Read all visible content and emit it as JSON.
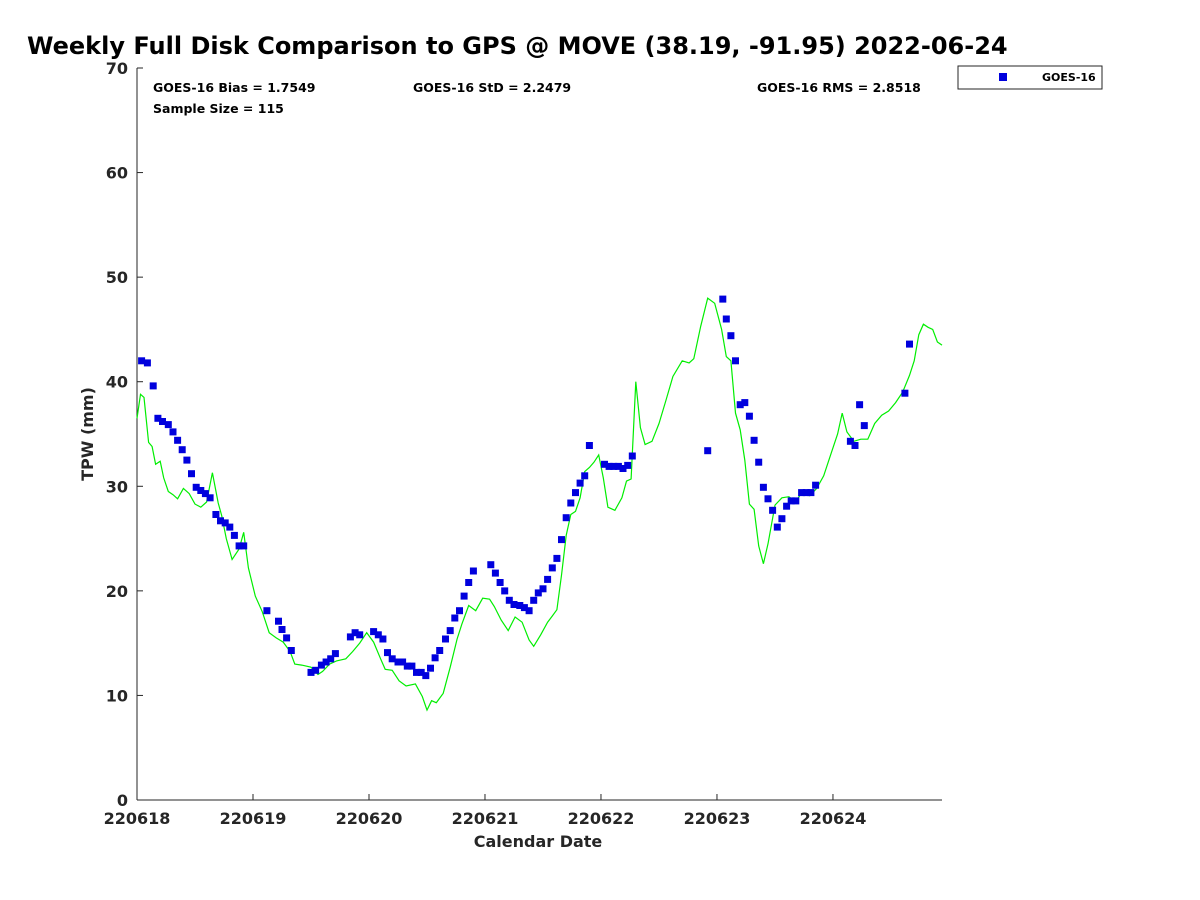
{
  "chart_data": {
    "type": "scatter",
    "title": "Weekly Full Disk Comparison to GPS @ MOVE (38.19, -91.95) 2022-06-24",
    "xlabel": "Calendar Date",
    "ylabel": "TPW (mm)",
    "xlim": [
      0,
      6.94
    ],
    "ylim": [
      0,
      70
    ],
    "x_ticks": [
      {
        "value": 0,
        "label": "220618"
      },
      {
        "value": 1,
        "label": "220619"
      },
      {
        "value": 2,
        "label": "220620"
      },
      {
        "value": 3,
        "label": "220621"
      },
      {
        "value": 4,
        "label": "220622"
      },
      {
        "value": 5,
        "label": "220623"
      },
      {
        "value": 6,
        "label": "220624"
      }
    ],
    "y_ticks": [
      0,
      10,
      20,
      30,
      40,
      50,
      60,
      70
    ],
    "x_axis_note": "x = days after 220618",
    "grid": false,
    "legend_position": "top-right (outside)",
    "stats": {
      "bias": "GOES-16 Bias = 1.7549",
      "std": "GOES-16 StD = 2.2479",
      "rms": "GOES-16 RMS = 2.8518",
      "sample": "Sample Size = 115"
    },
    "series": [
      {
        "name": "GOES-16",
        "kind": "scatter",
        "color": "#0000dd",
        "marker": "square",
        "x": [
          0.04,
          0.09,
          0.14,
          0.18,
          0.22,
          0.27,
          0.31,
          0.35,
          0.39,
          0.43,
          0.47,
          0.51,
          0.55,
          0.59,
          0.63,
          0.68,
          0.72,
          0.76,
          0.8,
          0.84,
          0.88,
          0.92,
          1.12,
          1.22,
          1.25,
          1.29,
          1.33,
          1.5,
          1.54,
          1.59,
          1.63,
          1.67,
          1.71,
          1.84,
          1.88,
          1.92,
          2.04,
          2.08,
          2.12,
          2.16,
          2.2,
          2.25,
          2.29,
          2.33,
          2.37,
          2.41,
          2.45,
          2.49,
          2.53,
          2.57,
          2.61,
          2.66,
          2.7,
          2.74,
          2.78,
          2.82,
          2.86,
          2.9,
          3.05,
          3.09,
          3.13,
          3.17,
          3.21,
          3.25,
          3.3,
          3.34,
          3.38,
          3.42,
          3.46,
          3.5,
          3.54,
          3.58,
          3.62,
          3.66,
          3.7,
          3.74,
          3.78,
          3.82,
          3.86,
          3.9,
          4.03,
          4.07,
          4.11,
          4.15,
          4.19,
          4.23,
          4.27,
          4.92,
          5.05,
          5.08,
          5.12,
          5.16,
          5.2,
          5.24,
          5.28,
          5.32,
          5.36,
          5.4,
          5.44,
          5.48,
          5.52,
          5.56,
          5.6,
          5.64,
          5.68,
          5.73,
          5.77,
          5.81,
          5.85,
          6.15,
          6.19,
          6.23,
          6.27,
          6.62,
          6.66
        ],
        "y": [
          42.0,
          41.8,
          39.6,
          36.5,
          36.2,
          35.9,
          35.2,
          34.4,
          33.5,
          32.5,
          31.2,
          29.9,
          29.6,
          29.3,
          28.9,
          27.3,
          26.7,
          26.5,
          26.1,
          25.3,
          24.3,
          24.3,
          18.1,
          17.1,
          16.3,
          15.5,
          14.3,
          12.2,
          12.4,
          12.9,
          13.2,
          13.5,
          14.0,
          15.6,
          16.0,
          15.8,
          16.1,
          15.8,
          15.4,
          14.1,
          13.5,
          13.2,
          13.2,
          12.8,
          12.8,
          12.2,
          12.2,
          11.9,
          12.6,
          13.6,
          14.3,
          15.4,
          16.2,
          17.4,
          18.1,
          19.5,
          20.8,
          21.9,
          22.5,
          21.7,
          20.8,
          20.0,
          19.1,
          18.7,
          18.6,
          18.4,
          18.1,
          19.1,
          19.8,
          20.2,
          21.1,
          22.2,
          23.1,
          24.9,
          27.0,
          28.4,
          29.4,
          30.3,
          31.0,
          33.9,
          32.1,
          31.9,
          31.9,
          31.9,
          31.7,
          32.0,
          32.9,
          33.4,
          47.9,
          46.0,
          44.4,
          42.0,
          37.8,
          38.0,
          36.7,
          34.4,
          32.3,
          29.9,
          28.8,
          27.7,
          26.1,
          26.9,
          28.1,
          28.6,
          28.6,
          29.4,
          29.4,
          29.4,
          30.1,
          34.3,
          33.9,
          37.8,
          35.8,
          38.9,
          43.6
        ]
      },
      {
        "name": "",
        "kind": "line",
        "color": "#00ee00",
        "x": [
          0.0,
          0.03,
          0.06,
          0.1,
          0.13,
          0.16,
          0.2,
          0.23,
          0.27,
          0.31,
          0.35,
          0.4,
          0.45,
          0.5,
          0.55,
          0.6,
          0.65,
          0.7,
          0.73,
          0.77,
          0.82,
          0.88,
          0.92,
          0.96,
          1.02,
          1.08,
          1.14,
          1.2,
          1.26,
          1.32,
          1.36,
          1.42,
          1.5,
          1.56,
          1.6,
          1.66,
          1.72,
          1.8,
          1.86,
          1.92,
          1.98,
          2.04,
          2.1,
          2.14,
          2.2,
          2.26,
          2.32,
          2.4,
          2.46,
          2.5,
          2.54,
          2.58,
          2.64,
          2.7,
          2.76,
          2.8,
          2.86,
          2.92,
          2.98,
          3.04,
          3.08,
          3.14,
          3.2,
          3.26,
          3.32,
          3.38,
          3.42,
          3.48,
          3.54,
          3.58,
          3.62,
          3.66,
          3.7,
          3.74,
          3.78,
          3.82,
          3.86,
          3.9,
          3.94,
          3.98,
          4.02,
          4.06,
          4.12,
          4.18,
          4.22,
          4.26,
          4.3,
          4.34,
          4.38,
          4.44,
          4.5,
          4.56,
          4.62,
          4.7,
          4.76,
          4.8,
          4.86,
          4.92,
          4.98,
          5.04,
          5.08,
          5.12,
          5.16,
          5.2,
          5.24,
          5.28,
          5.32,
          5.36,
          5.4,
          5.44,
          5.5,
          5.56,
          5.62,
          5.68,
          5.74,
          5.8,
          5.86,
          5.92,
          5.98,
          6.04,
          6.08,
          6.12,
          6.18,
          6.24,
          6.3,
          6.36,
          6.42,
          6.48,
          6.54,
          6.6,
          6.66,
          6.7,
          6.74,
          6.78,
          6.82,
          6.86,
          6.9,
          6.94
        ],
        "y": [
          36.5,
          38.8,
          38.5,
          34.2,
          33.8,
          32.1,
          32.4,
          30.8,
          29.5,
          29.2,
          28.8,
          29.8,
          29.3,
          28.3,
          28.0,
          28.5,
          31.3,
          28.4,
          27.2,
          25.0,
          23.0,
          24.0,
          25.6,
          22.2,
          19.5,
          18.0,
          16.0,
          15.5,
          15.1,
          14.2,
          13.0,
          12.9,
          12.7,
          12.0,
          12.3,
          13.0,
          13.3,
          13.5,
          14.2,
          15.0,
          16.0,
          15.1,
          13.5,
          12.5,
          12.4,
          11.4,
          10.9,
          11.1,
          9.9,
          8.6,
          9.5,
          9.3,
          10.2,
          12.7,
          15.4,
          16.8,
          18.6,
          18.1,
          19.3,
          19.2,
          18.5,
          17.2,
          16.2,
          17.5,
          17.0,
          15.3,
          14.7,
          15.8,
          17.0,
          17.6,
          18.2,
          21.5,
          25.3,
          27.3,
          27.6,
          28.9,
          31.4,
          31.8,
          32.3,
          33.0,
          30.8,
          28.0,
          27.7,
          28.9,
          30.5,
          30.7,
          40.0,
          35.6,
          34.0,
          34.3,
          36.0,
          38.2,
          40.5,
          42.0,
          41.8,
          42.2,
          45.3,
          48.0,
          47.5,
          45.0,
          42.4,
          42.0,
          37.0,
          35.4,
          32.5,
          28.3,
          27.8,
          24.3,
          22.6,
          24.5,
          28.2,
          28.9,
          29.0,
          28.5,
          29.6,
          29.1,
          29.8,
          31.0,
          33.0,
          35.0,
          37.0,
          35.2,
          34.3,
          34.5,
          34.5,
          36.0,
          36.8,
          37.2,
          38.0,
          39.0,
          40.6,
          42.0,
          44.5,
          45.5,
          45.2,
          45.0,
          43.8,
          43.5
        ]
      }
    ]
  }
}
